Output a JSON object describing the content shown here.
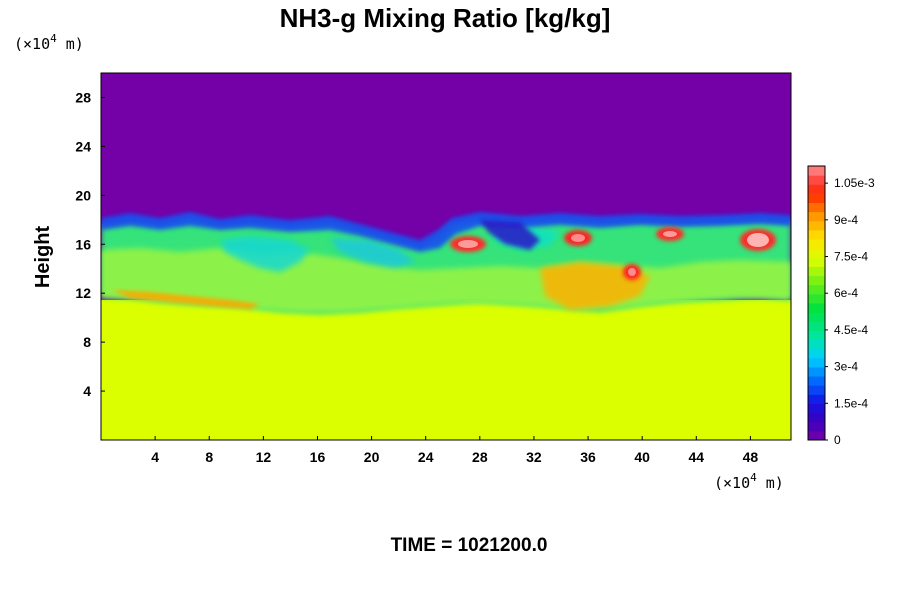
{
  "chart_data": {
    "type": "heatmap",
    "title": "NH3-g Mixing Ratio [kg/kg]",
    "xlabel": "",
    "ylabel": "Height",
    "x_unit": "(×10",
    "x_unit_exp": "4",
    "x_unit_tail": " m)",
    "y_unit": "(×10",
    "y_unit_exp": "4",
    "y_unit_tail": " m)",
    "xlim": [
      0,
      51
    ],
    "ylim": [
      0,
      30
    ],
    "x_ticks": [
      4,
      8,
      12,
      16,
      20,
      24,
      28,
      32,
      36,
      40,
      44,
      48
    ],
    "y_ticks": [
      4,
      8,
      12,
      16,
      20,
      24,
      28
    ],
    "x_tick_labels": [
      "4",
      "8",
      "12",
      "16",
      "20",
      "24",
      "28",
      "32",
      "36",
      "40",
      "44",
      "48"
    ],
    "y_tick_labels": [
      "4",
      "8",
      "12",
      "16",
      "20",
      "24",
      "28"
    ],
    "colorbar": {
      "min": 0,
      "max": 0.00112,
      "ticks": [
        0,
        0.00015,
        0.0003,
        0.00045,
        0.0006,
        0.00075,
        0.0009,
        0.00105
      ],
      "tick_labels": [
        "0",
        "1.5e-4",
        "3e-4",
        "4.5e-4",
        "6e-4",
        "7.5e-4",
        "9e-4",
        "1.05e-3"
      ]
    },
    "fields": {
      "upper_region_value": 0,
      "lower_region_value": 0.00078,
      "interface_height_approx": 17.5
    },
    "footer": "TIME = 1021200.0"
  }
}
